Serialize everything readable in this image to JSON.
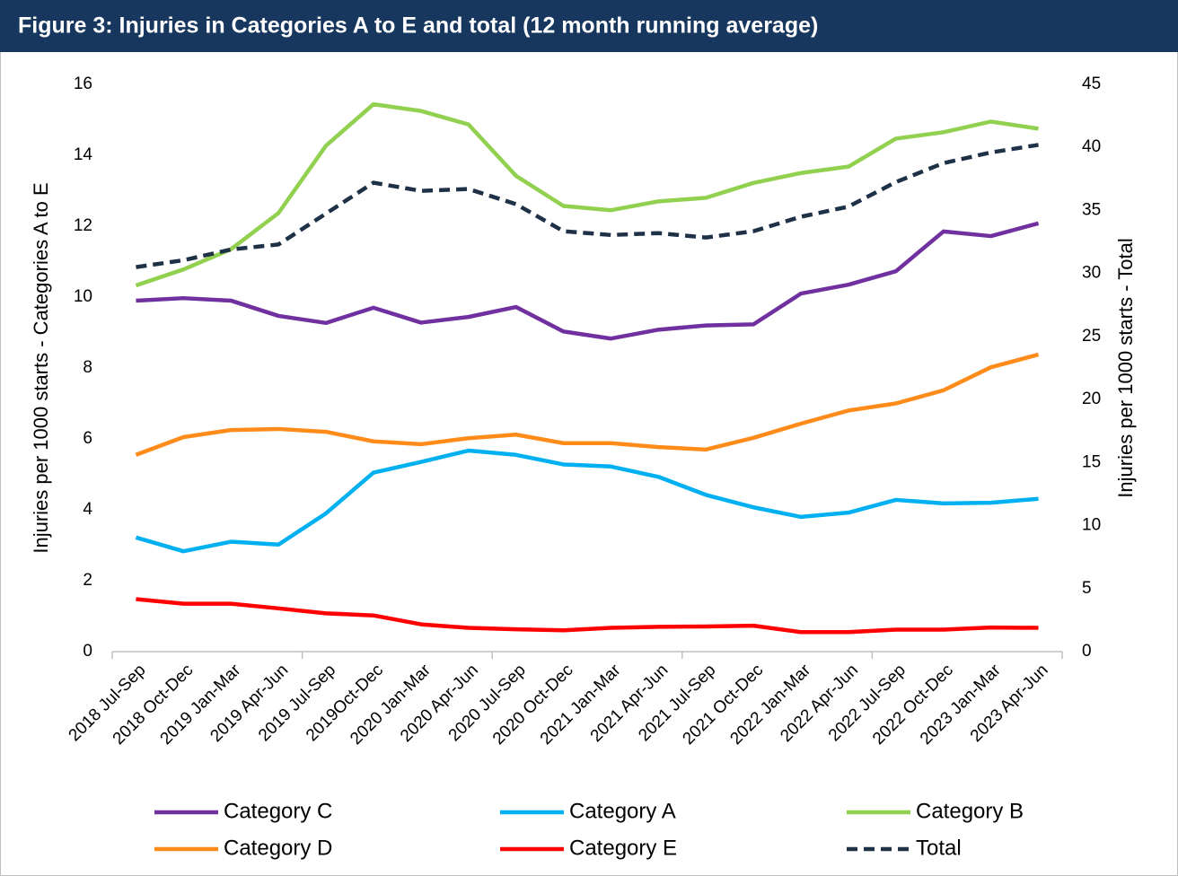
{
  "chart_data": {
    "type": "line",
    "title": "Figure 3: Injuries in Categories A to E and total (12 month running average)",
    "y_label": "Injuries per 1000 starts - Categories A to E",
    "y2_label": "Injuries per 1000 starts - Total",
    "categories": [
      "2018 Jul-Sep",
      "2018 Oct-Dec",
      "2019 Jan-Mar",
      "2019 Apr-Jun",
      "2019 Jul-Sep",
      "2019Oct-Dec",
      "2020 Jan-Mar",
      "2020 Apr-Jun",
      "2020 Jul-Sep",
      "2020 Oct-Dec",
      "2021 Jan-Mar",
      "2021 Apr-Jun",
      "2021 Jul-Sep",
      "2021 Oct-Dec",
      "2022 Jan-Mar",
      "2022 Apr-Jun",
      "2022 Jul-Sep",
      "2022 Oct-Dec",
      "2023 Jan-Mar",
      "2023 Apr-Jun"
    ],
    "series": [
      {
        "name": "Category C",
        "color": "#7030a0",
        "values": [
          9.9,
          9.97,
          9.9,
          9.47,
          9.27,
          9.7,
          9.28,
          9.44,
          9.72,
          9.03,
          8.83,
          9.08,
          9.2,
          9.23,
          10.1,
          10.35,
          10.73,
          11.85,
          11.72,
          12.08
        ]
      },
      {
        "name": "Category A",
        "color": "#00b0f0",
        "values": [
          3.22,
          2.83,
          3.1,
          3.02,
          3.9,
          5.05,
          5.35,
          5.67,
          5.55,
          5.28,
          5.22,
          4.93,
          4.42,
          4.07,
          3.8,
          3.92,
          4.28,
          4.18,
          4.2,
          4.31
        ]
      },
      {
        "name": "Category B",
        "color": "#92d050",
        "values": [
          10.33,
          10.78,
          11.35,
          12.37,
          14.27,
          15.44,
          15.25,
          14.87,
          13.42,
          12.57,
          12.45,
          12.7,
          12.8,
          13.22,
          13.5,
          13.68,
          14.47,
          14.65,
          14.95,
          14.75
        ]
      },
      {
        "name": "Category D",
        "color": "#ff8c1a",
        "values": [
          5.55,
          6.05,
          6.25,
          6.28,
          6.2,
          5.93,
          5.85,
          6.02,
          6.12,
          5.88,
          5.88,
          5.77,
          5.7,
          6.03,
          6.43,
          6.8,
          7.0,
          7.37,
          8.02,
          8.38
        ]
      },
      {
        "name": "Category E",
        "color": "#ff0000",
        "values": [
          1.48,
          1.35,
          1.35,
          1.22,
          1.08,
          1.02,
          0.77,
          0.67,
          0.63,
          0.6,
          0.67,
          0.7,
          0.71,
          0.73,
          0.55,
          0.55,
          0.62,
          0.62,
          0.68,
          0.67
        ]
      },
      {
        "name": "Total",
        "color": "#1f3147",
        "dashed": true,
        "axis": "y2",
        "values": [
          30.5,
          31.05,
          31.9,
          32.3,
          34.75,
          37.2,
          36.55,
          36.7,
          35.5,
          33.35,
          33.05,
          33.2,
          32.85,
          33.35,
          34.5,
          35.3,
          37.25,
          38.75,
          39.6,
          40.2
        ]
      }
    ],
    "ylim": [
      0,
      16
    ],
    "yticks": [
      0,
      2,
      4,
      6,
      8,
      10,
      12,
      14,
      16
    ],
    "y2lim": [
      0,
      45
    ],
    "y2ticks": [
      0,
      5,
      10,
      15,
      20,
      25,
      30,
      35,
      40,
      45
    ],
    "grid": false,
    "legend": "bottom"
  }
}
